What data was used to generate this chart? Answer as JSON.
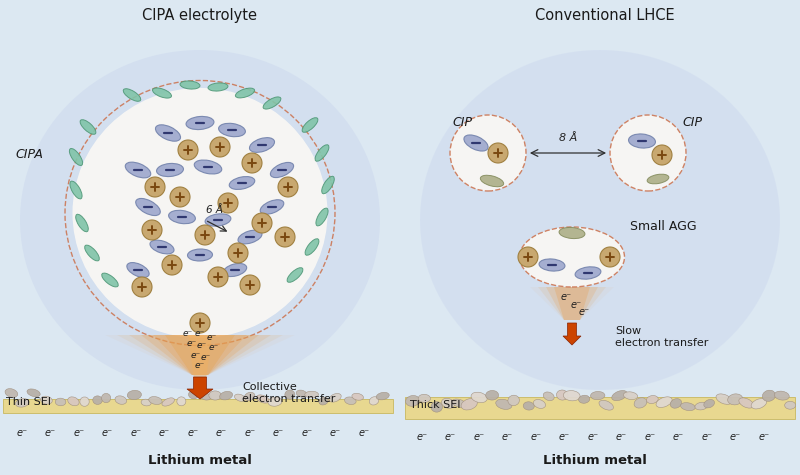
{
  "bg_color": "#dce8f2",
  "left_title": "CIPA electrolyte",
  "right_title": "Conventional LHCE",
  "left_label_cipa": "CIPA",
  "left_label_thin_sei": "Thin SEI",
  "left_label_collective": "Collective\nelectron transfer",
  "left_label_lithium": "Lithium metal",
  "right_label_cip1": "CIP",
  "right_label_cip2": "CIP",
  "right_label_small_agg": "Small AGG",
  "right_label_slow": "Slow\nelectron transfer",
  "right_label_thick_sei": "Thick SEI",
  "right_label_lithium": "Lithium metal",
  "left_6a": "6 Å",
  "right_8a": "8 Å",
  "color_blue_ellipse": "#9aa5cc",
  "color_blue_ellipse_edge": "#7080aa",
  "color_teal_ellipse": "#80c4a8",
  "color_teal_edge": "#509878",
  "color_olive_ellipse": "#a8aa80",
  "color_olive_edge": "#808858",
  "color_tan_circle": "#c8a870",
  "color_tan_edge": "#a08040",
  "color_dashed": "#cc7755",
  "color_sei_yellow": "#e8d890",
  "color_arrow": "#cc4400",
  "color_arrow_edge": "#882200",
  "color_white_blob": "#faf8f4",
  "color_outer_glow_left": "#c8d8ee",
  "color_outer_glow_right": "#c8d8ee",
  "color_funnel": "#e8a050",
  "color_pebble1": "#c0b8b0",
  "color_pebble2": "#d0c8c0",
  "color_pebble3": "#b8b0a8",
  "color_pebble4": "#d8d0c8"
}
